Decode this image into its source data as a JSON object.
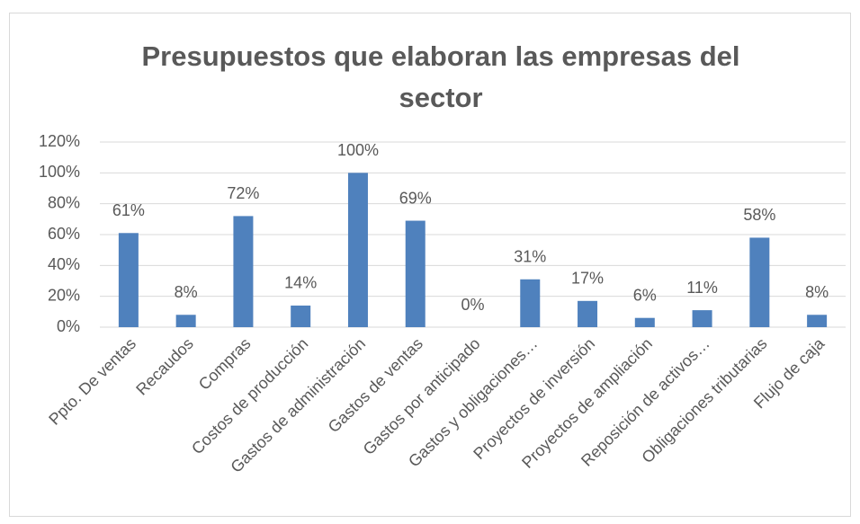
{
  "chart_data": {
    "type": "bar",
    "title": "Presupuestos que elaboran las empresas del sector",
    "categories": [
      "Ppto. De ventas",
      "Recaudos",
      "Compras",
      "Costos de producción",
      "Gastos de administración",
      "Gastos de ventas",
      "Gastos por anticipado",
      "Gastos y obligaciones…",
      "Proyectos de inversión",
      "Proyectos de ampliación",
      "Reposición de activos…",
      "Obligaciones tributarias",
      "Flujo de caja"
    ],
    "values": [
      61,
      8,
      72,
      14,
      100,
      69,
      0,
      31,
      17,
      6,
      11,
      58,
      8
    ],
    "value_labels": [
      "61%",
      "8%",
      "72%",
      "14%",
      "100%",
      "69%",
      "0%",
      "31%",
      "17%",
      "6%",
      "11%",
      "58%",
      "8%"
    ],
    "color": "#4f81bd",
    "ylim": [
      0,
      120
    ],
    "yticks": [
      {
        "value": 0,
        "label": "0%"
      },
      {
        "value": 20,
        "label": "20%"
      },
      {
        "value": 40,
        "label": "40%"
      },
      {
        "value": 60,
        "label": "60%"
      },
      {
        "value": 80,
        "label": "80%"
      },
      {
        "value": 100,
        "label": "100%"
      },
      {
        "value": 120,
        "label": "120%"
      }
    ],
    "grid": true
  }
}
